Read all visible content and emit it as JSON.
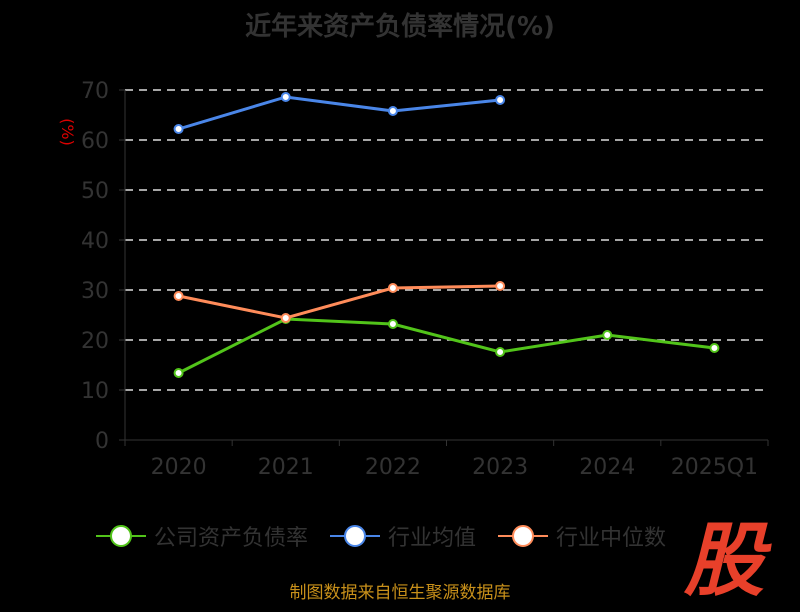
{
  "chart_data": {
    "type": "line",
    "title": "近年来资产负债率情况(%)",
    "ylabel": "(%)",
    "xlabel": "",
    "ylim": [
      0,
      70
    ],
    "yticks": [
      0,
      10,
      20,
      30,
      40,
      50,
      60,
      70
    ],
    "grid": true,
    "legend_position": "bottom",
    "categories": [
      "2020",
      "2021",
      "2022",
      "2023",
      "2024",
      "2025Q1"
    ],
    "series": [
      {
        "name": "公司资产负债率",
        "color": "#52c41a",
        "values": [
          13.4,
          24.2,
          23.2,
          17.6,
          21.0,
          18.4
        ]
      },
      {
        "name": "行业均值",
        "color": "#4a86e8",
        "values": [
          62.2,
          68.6,
          65.8,
          68.0,
          null,
          null
        ]
      },
      {
        "name": "行业中位数",
        "color": "#ff8c5a",
        "values": [
          28.8,
          24.4,
          30.4,
          30.8,
          null,
          null
        ]
      }
    ]
  },
  "source": "制图数据来自恒生聚源数据库",
  "logo_text": "股"
}
